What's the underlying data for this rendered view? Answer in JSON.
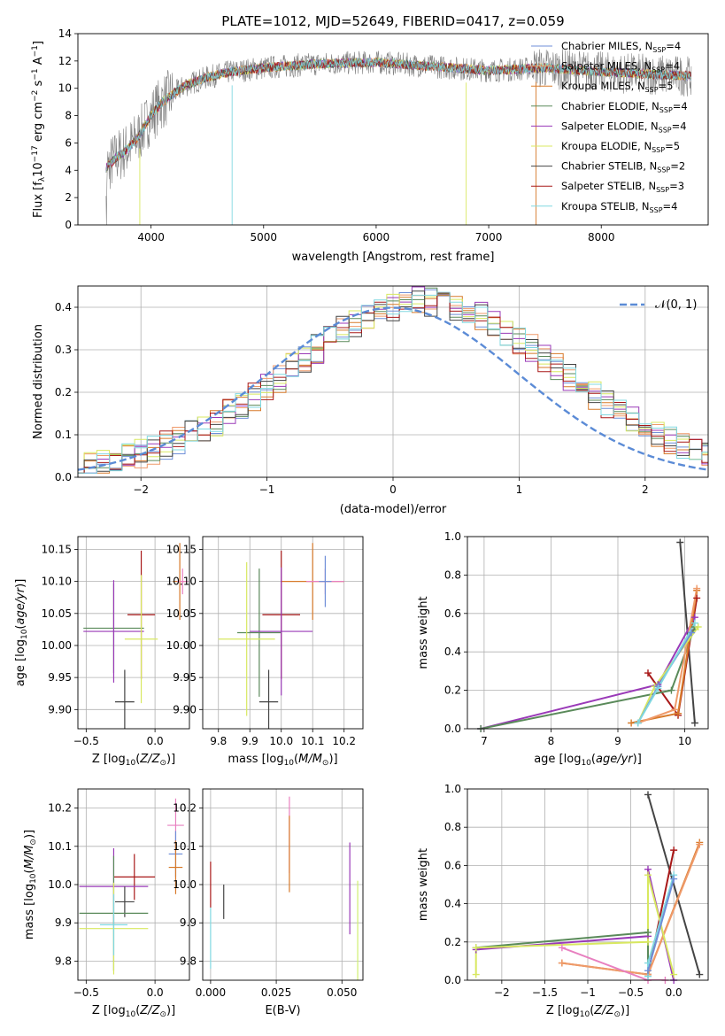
{
  "title": "PLATE=1012, MJD=52649, FIBERID=0417, z=0.059",
  "colors": {
    "Chabrier MILES": "#6f8fd8",
    "Salpeter MILES": "#ef9a6a",
    "Kroupa MILES": "#d77a2a",
    "Chabrier ELODIE": "#5a8a5a",
    "Salpeter ELODIE": "#9a3ab8",
    "Kroupa ELODIE": "#d8e860",
    "Chabrier STELIB": "#444444",
    "Salpeter STELIB": "#a81818",
    "Kroupa STELIB": "#80d8e0",
    "pink": "#e880c0",
    "lime": "#d0f070",
    "normal": "#5b8bd6",
    "data": "#808080"
  },
  "chart_data": [
    {
      "type": "line",
      "panel": "spectrum",
      "xlabel": "wavelength [Angstrom, rest frame]",
      "ylabel": "Flux [f_λ 10^-17 erg cm^-2 s^-1 A^-1]",
      "xlim": [
        3350,
        8950
      ],
      "ylim": [
        0,
        14
      ],
      "xticks": [
        4000,
        5000,
        6000,
        7000,
        8000
      ],
      "yticks": [
        0,
        2,
        4,
        6,
        8,
        10,
        12,
        14
      ],
      "legend_position": "top-right",
      "legend": [
        {
          "base": "Chabrier MILES, N",
          "sub": "SSP",
          "tail": "=4"
        },
        {
          "base": "Salpeter MILES, N",
          "sub": "SSP",
          "tail": "=4"
        },
        {
          "base": "Kroupa MILES, N",
          "sub": "SSP",
          "tail": "=5"
        },
        {
          "base": "Chabrier ELODIE, N",
          "sub": "SSP",
          "tail": "=4"
        },
        {
          "base": "Salpeter ELODIE, N",
          "sub": "SSP",
          "tail": "=4"
        },
        {
          "base": "Kroupa ELODIE, N",
          "sub": "SSP",
          "tail": "=5"
        },
        {
          "base": "Chabrier STELIB, N",
          "sub": "SSP",
          "tail": "=2"
        },
        {
          "base": "Salpeter STELIB, N",
          "sub": "SSP",
          "tail": "=3"
        },
        {
          "base": "Kroupa STELIB, N",
          "sub": "SSP",
          "tail": "=4"
        }
      ],
      "continuum": [
        [
          3600,
          4.2
        ],
        [
          3700,
          5.0
        ],
        [
          3800,
          5.6
        ],
        [
          3900,
          6.6
        ],
        [
          4000,
          8.0
        ],
        [
          4100,
          9.0
        ],
        [
          4200,
          9.6
        ],
        [
          4300,
          10.2
        ],
        [
          4500,
          10.8
        ],
        [
          4700,
          11.2
        ],
        [
          5000,
          11.5
        ],
        [
          5500,
          11.8
        ],
        [
          6000,
          11.9
        ],
        [
          6500,
          11.6
        ],
        [
          7000,
          11.3
        ],
        [
          7500,
          11.5
        ],
        [
          8000,
          11.2
        ],
        [
          8500,
          11.0
        ],
        [
          8800,
          10.9
        ]
      ]
    },
    {
      "type": "bar",
      "panel": "residual-histogram",
      "xlabel": "(data-model)/error",
      "ylabel": "Normed distribution",
      "xlim": [
        -2.5,
        2.5
      ],
      "ylim": [
        0,
        0.45
      ],
      "xticks": [
        -2,
        -1,
        0,
        1,
        2
      ],
      "yticks": [
        0.0,
        0.1,
        0.2,
        0.3,
        0.4
      ],
      "legend": "𝒩(0, 1)",
      "legend_position": "top-right"
    },
    {
      "type": "scatter",
      "panel": "age-vs-Z",
      "xlabel": "Z [log10(Z/Z⊙)]",
      "ylabel": "age [log10(age/yr)]",
      "xlim": [
        -0.56,
        0.25
      ],
      "ylim": [
        9.87,
        10.17
      ],
      "xticks": [
        -0.5,
        0.0
      ],
      "yticks": [
        9.9,
        9.95,
        10.0,
        10.05,
        10.1,
        10.15
      ],
      "points": [
        {
          "x": 0.18,
          "y": 10.1,
          "xerr": 0.05,
          "yerr": 0.06,
          "c": "Kroupa MILES"
        },
        {
          "x": 0.2,
          "y": 10.1,
          "xerr": 0.04,
          "yerr": 0.02,
          "c": "pink"
        },
        {
          "x": -0.1,
          "y": 10.048,
          "xerr": 0.1,
          "yerr": 0.1,
          "c": "Salpeter STELIB"
        },
        {
          "x": -0.3,
          "y": 10.027,
          "xerr": 0.22,
          "yerr": 0.07,
          "c": "Chabrier ELODIE"
        },
        {
          "x": -0.3,
          "y": 10.022,
          "xerr": 0.22,
          "yerr": 0.08,
          "c": "Salpeter ELODIE"
        },
        {
          "x": -0.1,
          "y": 10.01,
          "xerr": 0.12,
          "yerr": 0.1,
          "c": "Kroupa ELODIE"
        },
        {
          "x": -0.22,
          "y": 9.912,
          "xerr": 0.07,
          "yerr": 0.05,
          "c": "Chabrier STELIB"
        }
      ]
    },
    {
      "type": "scatter",
      "panel": "age-vs-mass",
      "xlabel": "mass [log10(M/M⊙)]",
      "ylabel": "",
      "xlim": [
        9.75,
        10.26
      ],
      "ylim": [
        9.87,
        10.17
      ],
      "xticks": [
        9.8,
        9.9,
        10.0,
        10.1,
        10.2
      ],
      "yticks": [
        9.9,
        9.95,
        10.0,
        10.05,
        10.1,
        10.15
      ],
      "points": [
        {
          "x": 10.1,
          "y": 10.1,
          "xerr": 0.1,
          "yerr": 0.06,
          "c": "Kroupa MILES"
        },
        {
          "x": 10.14,
          "y": 10.1,
          "xerr": 0.06,
          "yerr": 0.02,
          "c": "pink"
        },
        {
          "x": 10.14,
          "y": 10.1,
          "xerr": 0.02,
          "yerr": 0.04,
          "c": "Chabrier MILES"
        },
        {
          "x": 10.0,
          "y": 10.048,
          "xerr": 0.06,
          "yerr": 0.1,
          "c": "Salpeter STELIB"
        },
        {
          "x": 9.93,
          "y": 10.02,
          "xerr": 0.07,
          "yerr": 0.1,
          "c": "Chabrier ELODIE"
        },
        {
          "x": 10.0,
          "y": 10.022,
          "xerr": 0.1,
          "yerr": 0.1,
          "c": "Salpeter ELODIE"
        },
        {
          "x": 9.89,
          "y": 10.01,
          "xerr": 0.09,
          "yerr": 0.12,
          "c": "Kroupa ELODIE"
        },
        {
          "x": 9.96,
          "y": 9.912,
          "xerr": 0.03,
          "yerr": 0.05,
          "c": "Chabrier STELIB"
        }
      ]
    },
    {
      "type": "line",
      "panel": "weight-vs-age",
      "xlabel": "age [log10(age/yr)]",
      "ylabel": "mass weight",
      "xlim": [
        6.75,
        10.35
      ],
      "ylim": [
        0,
        1.0
      ],
      "xticks": [
        7,
        8,
        9,
        10
      ],
      "yticks": [
        0.0,
        0.2,
        0.4,
        0.6,
        0.8,
        1.0
      ],
      "series": [
        {
          "name": "Chabrier STELIB",
          "x": [
            9.93,
            10.15
          ],
          "y": [
            0.97,
            0.03
          ]
        },
        {
          "name": "Salpeter STELIB",
          "x": [
            9.45,
            9.9,
            10.18
          ],
          "y": [
            0.29,
            0.07,
            0.68
          ]
        },
        {
          "name": "Salpeter ELODIE",
          "x": [
            6.95,
            9.6,
            10.15
          ],
          "y": [
            0.0,
            0.23,
            0.58
          ]
        },
        {
          "name": "Chabrier ELODIE",
          "x": [
            6.95,
            9.8,
            10.15
          ],
          "y": [
            0.0,
            0.2,
            0.53
          ]
        },
        {
          "name": "Kroupa MILES",
          "x": [
            9.2,
            9.9,
            10.18
          ],
          "y": [
            0.03,
            0.08,
            0.72
          ]
        },
        {
          "name": "Salpeter MILES",
          "x": [
            9.3,
            9.85,
            10.18
          ],
          "y": [
            0.03,
            0.1,
            0.73
          ]
        },
        {
          "name": "Kroupa ELODIE",
          "x": [
            9.3,
            9.55,
            10.2
          ],
          "y": [
            0.03,
            0.22,
            0.53
          ]
        },
        {
          "name": "Chabrier MILES",
          "x": [
            9.3,
            9.6,
            10.1
          ],
          "y": [
            0.03,
            0.22,
            0.5
          ]
        },
        {
          "name": "Kroupa STELIB",
          "x": [
            9.3,
            9.6,
            10.15
          ],
          "y": [
            0.03,
            0.21,
            0.55
          ]
        }
      ]
    },
    {
      "type": "scatter",
      "panel": "mass-vs-Z",
      "xlabel": "Z [log10(Z/Z⊙)]",
      "ylabel": "mass [log10(M/M⊙)]",
      "xlim": [
        -0.56,
        0.25
      ],
      "ylim": [
        9.75,
        10.25
      ],
      "xticks": [
        -0.5,
        0.0
      ],
      "yticks": [
        9.8,
        9.9,
        10.0,
        10.1,
        10.2
      ],
      "points": [
        {
          "x": 0.15,
          "y": 10.155,
          "xerr": 0.06,
          "yerr": 0.07,
          "c": "pink"
        },
        {
          "x": 0.15,
          "y": 10.08,
          "xerr": 0.05,
          "yerr": 0.06,
          "c": "Chabrier MILES"
        },
        {
          "x": 0.15,
          "y": 10.045,
          "xerr": 0.05,
          "yerr": 0.07,
          "c": "Kroupa MILES"
        },
        {
          "x": -0.15,
          "y": 10.02,
          "xerr": 0.15,
          "yerr": 0.06,
          "c": "Salpeter STELIB"
        },
        {
          "x": -0.3,
          "y": 9.995,
          "xerr": 0.25,
          "yerr": 0.1,
          "c": "Salpeter ELODIE"
        },
        {
          "x": -0.22,
          "y": 9.955,
          "xerr": 0.07,
          "yerr": 0.04,
          "c": "Chabrier STELIB"
        },
        {
          "x": -0.3,
          "y": 9.925,
          "xerr": 0.25,
          "yerr": 0.15,
          "c": "Chabrier ELODIE"
        },
        {
          "x": -0.3,
          "y": 9.885,
          "xerr": 0.25,
          "yerr": 0.12,
          "c": "Kroupa ELODIE"
        },
        {
          "x": -0.3,
          "y": 9.895,
          "xerr": 0.1,
          "yerr": 0.08,
          "c": "Kroupa STELIB"
        }
      ]
    },
    {
      "type": "scatter",
      "panel": "mass-vs-EBV",
      "xlabel": "E(B-V)",
      "ylabel": "",
      "xlim": [
        -0.003,
        0.058
      ],
      "ylim": [
        9.75,
        10.25
      ],
      "xticks": [
        0.0,
        0.025,
        0.05
      ],
      "yticks": [
        9.8,
        9.9,
        10.0,
        10.1,
        10.2
      ],
      "points": [
        {
          "x": 0.0,
          "y": 10.0,
          "yerr": 0.06,
          "c": "Salpeter STELIB"
        },
        {
          "x": 0.0,
          "y": 9.86,
          "yerr": 0.08,
          "c": "Kroupa STELIB"
        },
        {
          "x": 0.005,
          "y": 9.955,
          "yerr": 0.045,
          "c": "Chabrier STELIB"
        },
        {
          "x": 0.03,
          "y": 10.13,
          "yerr": 0.1,
          "c": "pink"
        },
        {
          "x": 0.03,
          "y": 10.08,
          "yerr": 0.1,
          "c": "Kroupa MILES"
        },
        {
          "x": 0.053,
          "y": 9.99,
          "yerr": 0.12,
          "c": "Salpeter ELODIE"
        },
        {
          "x": 0.056,
          "y": 9.88,
          "yerr": 0.13,
          "c": "lime"
        }
      ]
    },
    {
      "type": "line",
      "panel": "weight-vs-Z",
      "xlabel": "Z [log10(Z/Z⊙)]",
      "ylabel": "mass weight",
      "xlim": [
        -2.4,
        0.4
      ],
      "ylim": [
        0,
        1.0
      ],
      "xticks": [
        -2.0,
        -1.5,
        -1.0,
        -0.5,
        0.0
      ],
      "yticks": [
        0.0,
        0.2,
        0.4,
        0.6,
        0.8,
        1.0
      ],
      "series": [
        {
          "name": "Chabrier STELIB",
          "x": [
            -0.3,
            0.3
          ],
          "y": [
            0.97,
            0.03
          ]
        },
        {
          "name": "Salpeter STELIB",
          "x": [
            -0.3,
            0.0
          ],
          "y": [
            0.03,
            0.68
          ]
        },
        {
          "name": "Salpeter ELODIE",
          "x": [
            -2.3,
            -0.3,
            -0.3,
            0.0
          ],
          "y": [
            0.16,
            0.23,
            0.58,
            0.0
          ]
        },
        {
          "name": "Chabrier ELODIE",
          "x": [
            -2.3,
            -0.3,
            -0.3
          ],
          "y": [
            0.17,
            0.25,
            0.03
          ]
        },
        {
          "name": "Kroupa MILES",
          "x": [
            -1.3,
            -0.3,
            0.3
          ],
          "y": [
            0.09,
            0.03,
            0.72
          ]
        },
        {
          "name": "Salpeter MILES",
          "x": [
            -1.3,
            -0.3,
            0.3
          ],
          "y": [
            0.09,
            0.03,
            0.71
          ]
        },
        {
          "name": "pink",
          "x": [
            -1.3,
            -0.3,
            -0.1
          ],
          "y": [
            0.17,
            0.0,
            0.0
          ]
        },
        {
          "name": "Kroupa ELODIE",
          "x": [
            -2.3,
            -2.3,
            -0.3,
            -0.3,
            0.0
          ],
          "y": [
            0.03,
            0.17,
            0.2,
            0.55,
            0.03
          ]
        },
        {
          "name": "Kroupa STELIB",
          "x": [
            -0.3,
            -0.3,
            0.0
          ],
          "y": [
            0.02,
            0.09,
            0.55
          ]
        },
        {
          "name": "Chabrier MILES",
          "x": [
            -0.3,
            0.0
          ],
          "y": [
            0.05,
            0.53
          ]
        }
      ]
    }
  ]
}
